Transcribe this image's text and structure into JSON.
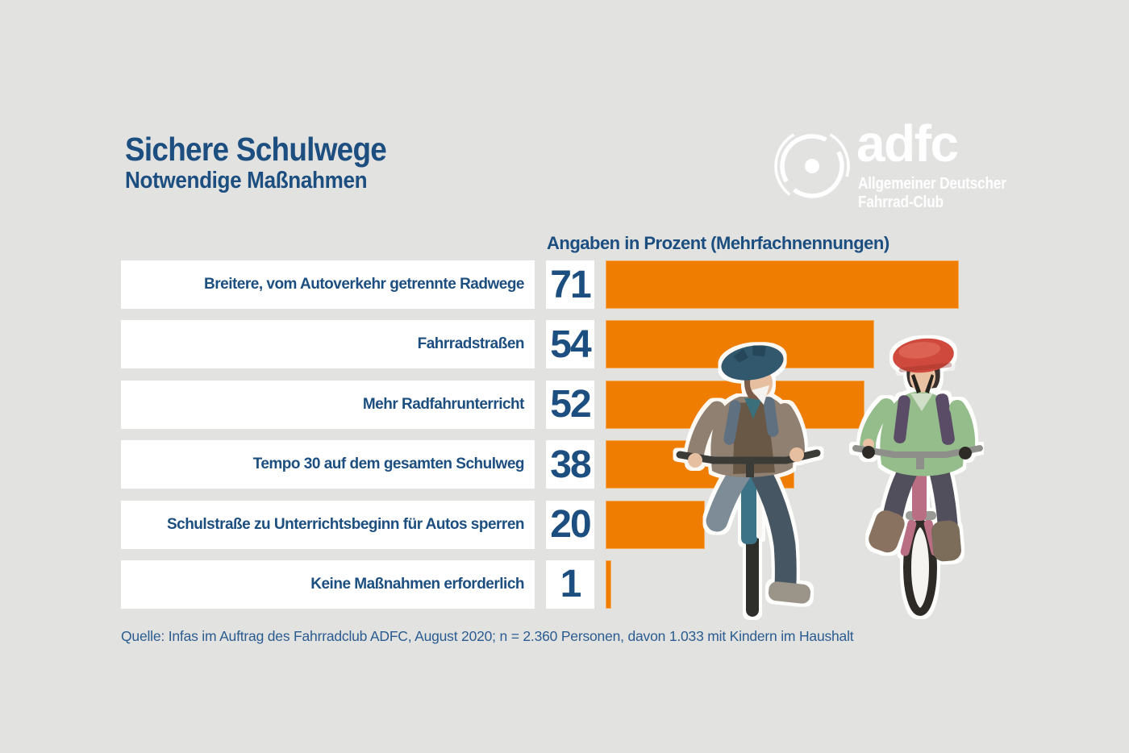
{
  "palette": {
    "bg": "#e2e2e1",
    "brand-blue": "#1c4e80",
    "source-blue": "#2b5c90",
    "accent-orange": "#ee7d01",
    "box-white": "#ffffff",
    "logo-white": "#ffffff"
  },
  "header": {
    "title": "Sichere Schulwege",
    "subtitle": "Notwendige Maßnahmen"
  },
  "logo": {
    "brand": "adfc",
    "sub1": "Allgemeiner Deutscher",
    "sub2": "Fahrrad-Club",
    "icon": "bicycle-wheel-icon"
  },
  "chart_data": {
    "type": "bar",
    "orientation": "horizontal",
    "title": "Sichere Schulwege",
    "subtitle": "Notwendige Maßnahmen",
    "unit_note": "Angaben in Prozent (Mehrfachnennungen)",
    "categories": [
      "Breitere, vom Autoverkehr getrennte Radwege",
      "Fahrradstraßen",
      "Mehr Radfahrunterricht",
      "Tempo 30 auf dem gesamten Schulweg",
      "Schulstraße zu Unterrichtsbeginn für Autos sperren",
      "Keine Maßnahmen erforderlich"
    ],
    "values": [
      71,
      54,
      52,
      38,
      20,
      1
    ],
    "xlim": [
      0,
      71
    ],
    "bar_color": "#ee7d01",
    "value_labels_shown": true,
    "legend": "none",
    "grid": "off"
  },
  "source_note": "Quelle: Infas im Auftrag des Fahrradclub ADFC, August 2020; n = 2.360 Personen, davon 1.033 mit Kindern im Haushalt",
  "illustration": {
    "description": "Zwei Kinder mit Helmen auf Fahrrädern (Aquarell-Illustration)"
  }
}
